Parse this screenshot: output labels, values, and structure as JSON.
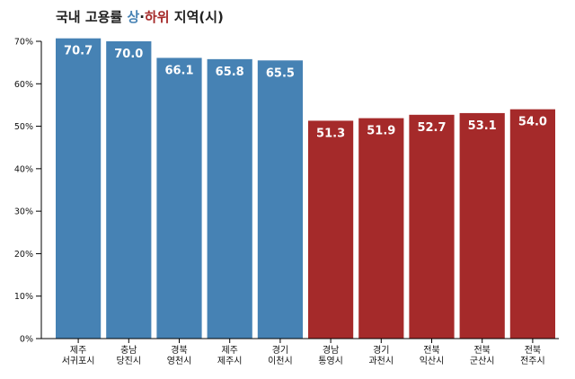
{
  "title": {
    "prefix": "국내 고용률 ",
    "highlight_up": "상",
    "separator": "·",
    "highlight_down": "하위",
    "suffix": " 지역(시)"
  },
  "chart_data": {
    "type": "bar",
    "title": "국내 고용률 상·하위 지역(시)",
    "xlabel": "",
    "ylabel": "",
    "ylim": [
      0,
      70
    ],
    "y_ticks": [
      "0%",
      "10%",
      "20%",
      "30%",
      "40%",
      "50%",
      "60%",
      "70%"
    ],
    "grid": false,
    "categories": [
      [
        "제주",
        "서귀포시"
      ],
      [
        "충남",
        "당진시"
      ],
      [
        "경북",
        "영천시"
      ],
      [
        "제주",
        "제주시"
      ],
      [
        "경기",
        "이천시"
      ],
      [
        "경남",
        "통영시"
      ],
      [
        "경기",
        "과천시"
      ],
      [
        "전북",
        "익산시"
      ],
      [
        "전북",
        "군산시"
      ],
      [
        "전북",
        "전주시"
      ]
    ],
    "values": [
      70.7,
      70.0,
      66.1,
      65.8,
      65.5,
      51.3,
      51.9,
      52.7,
      53.1,
      54.0
    ],
    "value_labels": [
      "70.7",
      "70.0",
      "66.1",
      "65.8",
      "65.5",
      "51.3",
      "51.9",
      "52.7",
      "53.1",
      "54.0"
    ],
    "groups": [
      "top",
      "top",
      "top",
      "top",
      "top",
      "bottom",
      "bottom",
      "bottom",
      "bottom",
      "bottom"
    ],
    "colors": {
      "top": "#4682b4",
      "bottom": "#a52a2a"
    }
  }
}
